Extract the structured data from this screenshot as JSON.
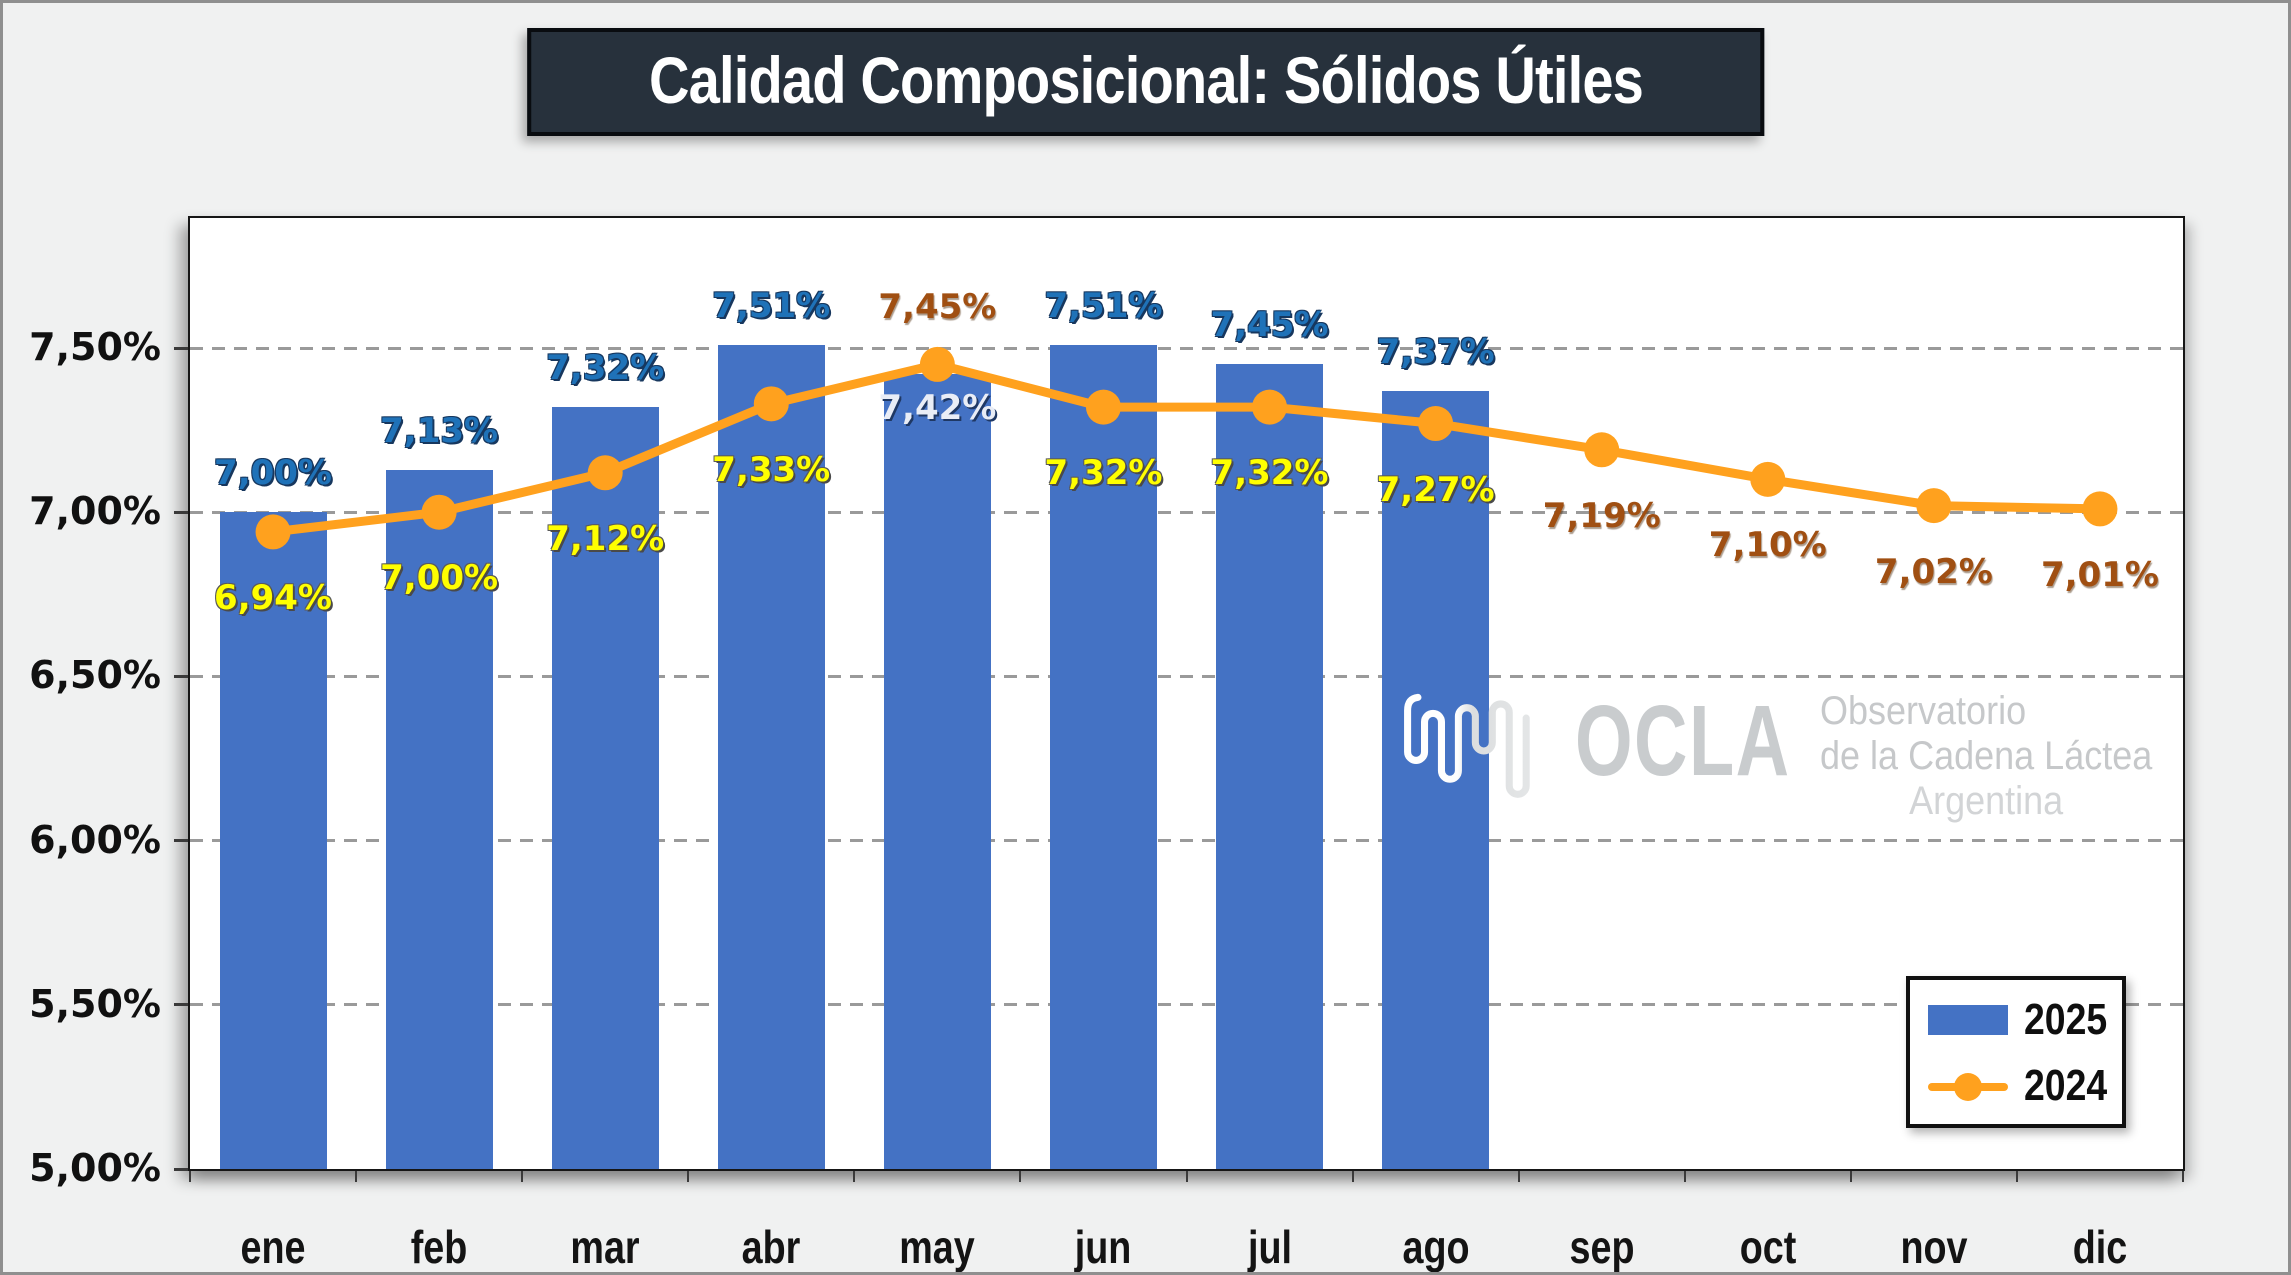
{
  "title": "Calidad Composicional: Sólidos Útiles",
  "legend": {
    "items": [
      {
        "label": "2025",
        "type": "bar",
        "color": "#4472C4"
      },
      {
        "label": "2024",
        "type": "line",
        "color": "#FFA11E"
      }
    ]
  },
  "watermark": {
    "icon": "milk-drip-squiggle-icon",
    "brand": "OCLA",
    "line1": "Observatorio",
    "line2": "de la Cadena Láctea",
    "line3": "Argentina"
  },
  "colors": {
    "bar": "#4472C4",
    "line": "#FFA11E",
    "label_blue": "#1F72B8",
    "label_yellow": "#FFFF00",
    "label_brown": "#A04F12",
    "label_white": "#E9EDF6",
    "grid": "#9A9A9A",
    "title_bg": "#27313C",
    "title_text": "#FFFFFF",
    "plot_bg": "#FFFFFF",
    "page_bg": "#F0F1F1"
  },
  "chart_data": {
    "type": "bar+line combo",
    "categories": [
      "ene",
      "feb",
      "mar",
      "abr",
      "may",
      "jun",
      "jul",
      "ago",
      "sep",
      "oct",
      "nov",
      "dic"
    ],
    "ylabel": "",
    "xlabel": "",
    "ylim": [
      5.0,
      7.9
    ],
    "grid": "horizontal dashed",
    "legend_position": "bottom-right inside",
    "y_ticks": [
      {
        "value": 5.0,
        "label": "5,00%"
      },
      {
        "value": 5.5,
        "label": "5,50%"
      },
      {
        "value": 6.0,
        "label": "6,00%"
      },
      {
        "value": 6.5,
        "label": "6,50%"
      },
      {
        "value": 7.0,
        "label": "7,00%"
      },
      {
        "value": 7.5,
        "label": "7,50%"
      }
    ],
    "series": [
      {
        "name": "2025",
        "type": "bar",
        "color": "#4472C4",
        "values": [
          7.0,
          7.13,
          7.32,
          7.51,
          7.42,
          7.51,
          7.45,
          7.37,
          null,
          null,
          null,
          null
        ],
        "labels": [
          "7,00%",
          "7,13%",
          "7,32%",
          "7,51%",
          "7,42%",
          "7,51%",
          "7,45%",
          "7,37%",
          null,
          null,
          null,
          null
        ],
        "label_styles": [
          "blue",
          "blue",
          "blue",
          "blue",
          "white",
          "blue",
          "blue",
          "blue",
          null,
          null,
          null,
          null
        ],
        "label_positions": [
          "above",
          "above",
          "above",
          "above",
          "inside",
          "above",
          "above",
          "above",
          null,
          null,
          null,
          null
        ]
      },
      {
        "name": "2024",
        "type": "line",
        "color": "#FFA11E",
        "values": [
          6.94,
          7.0,
          7.12,
          7.33,
          7.45,
          7.32,
          7.32,
          7.27,
          7.19,
          7.1,
          7.02,
          7.01
        ],
        "labels": [
          "6,94%",
          "7,00%",
          "7,12%",
          "7,33%",
          "7,45%",
          "7,32%",
          "7,32%",
          "7,27%",
          "7,19%",
          "7,10%",
          "7,02%",
          "7,01%"
        ],
        "label_styles": [
          "yellow",
          "yellow",
          "yellow",
          "yellow",
          "brown",
          "yellow",
          "yellow",
          "yellow",
          "brown",
          "brown",
          "brown",
          "brown"
        ],
        "label_positions": [
          "below",
          "below",
          "below",
          "below",
          "above",
          "below",
          "below",
          "below",
          "below",
          "below",
          "below",
          "below"
        ]
      }
    ]
  }
}
